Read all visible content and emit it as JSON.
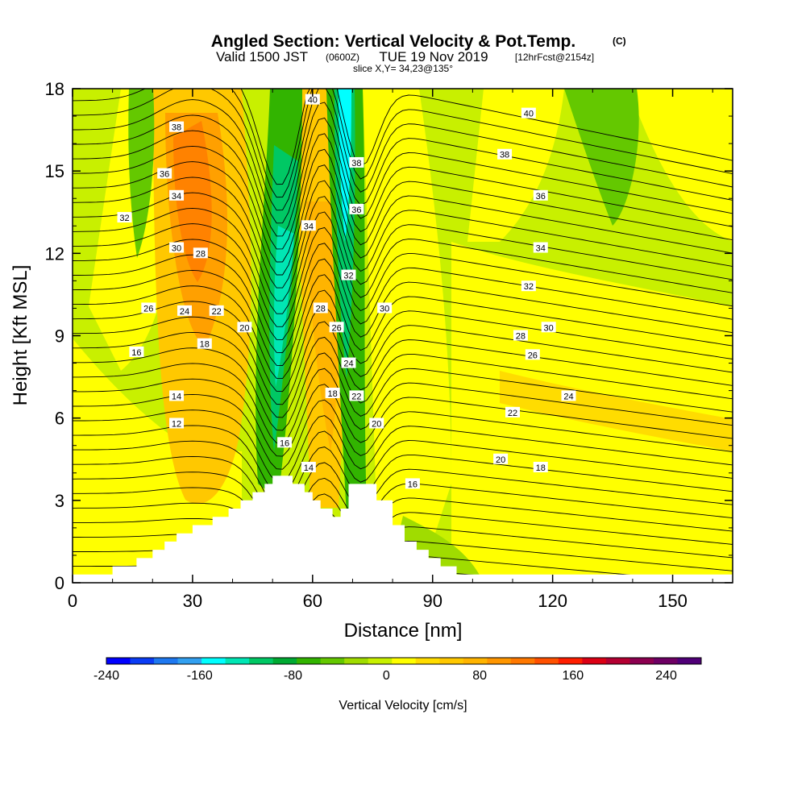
{
  "title": {
    "main": "Angled Section: Vertical Velocity & Pot.Temp.",
    "main_suffix": "(C)",
    "valid_prefix": "Valid 1500 JST",
    "valid_zulu": "(0600Z)",
    "valid_date": "TUE 19 Nov 2019",
    "forecast": "[12hrFcst@2154z]",
    "slice": "slice X,Y= 34,23@135°"
  },
  "chart_data": {
    "type": "heatmap",
    "xlabel": "Distance [nm]",
    "ylabel": "Height [Kft MSL]",
    "xlim": [
      0,
      165
    ],
    "ylim": [
      0,
      18
    ],
    "x_ticks": [
      0,
      30,
      60,
      90,
      120,
      150
    ],
    "y_ticks": [
      0,
      3,
      6,
      9,
      12,
      15,
      18
    ],
    "colorbar": {
      "label": "Vertical Velocity [cm/s]",
      "min": -240,
      "max": 270,
      "ticks": [
        -240,
        -160,
        -80,
        0,
        80,
        160,
        240
      ],
      "colors": [
        "#0000ff",
        "#0a3cf5",
        "#1e78f0",
        "#32a0f0",
        "#00ffff",
        "#00e6b4",
        "#00c864",
        "#00aa32",
        "#32b400",
        "#64c800",
        "#a0dc00",
        "#c8f000",
        "#ffff00",
        "#ffdc00",
        "#ffc800",
        "#ffb400",
        "#ff9600",
        "#ff7800",
        "#ff5000",
        "#ff1e00",
        "#dc0014",
        "#b40032",
        "#8c0050",
        "#6e0064",
        "#500078"
      ]
    },
    "terrain_profile": [
      [
        0,
        0.3
      ],
      [
        10,
        0.3
      ],
      [
        10,
        0.6
      ],
      [
        16,
        0.6
      ],
      [
        16,
        0.9
      ],
      [
        20,
        0.9
      ],
      [
        20,
        1.2
      ],
      [
        23,
        1.2
      ],
      [
        23,
        1.5
      ],
      [
        26,
        1.5
      ],
      [
        26,
        1.8
      ],
      [
        30,
        1.8
      ],
      [
        30,
        2.1
      ],
      [
        35,
        2.1
      ],
      [
        35,
        2.4
      ],
      [
        39,
        2.4
      ],
      [
        39,
        2.7
      ],
      [
        42,
        2.7
      ],
      [
        42,
        3.0
      ],
      [
        45,
        3.0
      ],
      [
        45,
        3.3
      ],
      [
        48,
        3.3
      ],
      [
        48,
        3.6
      ],
      [
        50,
        3.6
      ],
      [
        50,
        3.9
      ],
      [
        55,
        3.9
      ],
      [
        55,
        3.6
      ],
      [
        58,
        3.6
      ],
      [
        58,
        3.3
      ],
      [
        60,
        3.3
      ],
      [
        60,
        3.0
      ],
      [
        62,
        3.0
      ],
      [
        62,
        2.7
      ],
      [
        65,
        2.7
      ],
      [
        65,
        2.4
      ],
      [
        67,
        2.4
      ],
      [
        67,
        2.7
      ],
      [
        69,
        2.7
      ],
      [
        69,
        3.6
      ],
      [
        76,
        3.6
      ],
      [
        76,
        3.0
      ],
      [
        80,
        3.0
      ],
      [
        80,
        2.1
      ],
      [
        83,
        2.1
      ],
      [
        83,
        1.5
      ],
      [
        86,
        1.5
      ],
      [
        86,
        1.2
      ],
      [
        89,
        1.2
      ],
      [
        89,
        0.9
      ],
      [
        92,
        0.9
      ],
      [
        92,
        0.6
      ],
      [
        96,
        0.6
      ],
      [
        96,
        0.3
      ],
      [
        165,
        0.3
      ]
    ],
    "contour_labels": [
      {
        "x": 60,
        "y": 17.6,
        "text": "40"
      },
      {
        "x": 114,
        "y": 17.1,
        "text": "40"
      },
      {
        "x": 26,
        "y": 16.6,
        "text": "38"
      },
      {
        "x": 71,
        "y": 15.3,
        "text": "38"
      },
      {
        "x": 108,
        "y": 15.6,
        "text": "38"
      },
      {
        "x": 23,
        "y": 14.9,
        "text": "36"
      },
      {
        "x": 71,
        "y": 13.6,
        "text": "36"
      },
      {
        "x": 117,
        "y": 14.1,
        "text": "36"
      },
      {
        "x": 26,
        "y": 14.1,
        "text": "34"
      },
      {
        "x": 59,
        "y": 13.0,
        "text": "34"
      },
      {
        "x": 117,
        "y": 12.2,
        "text": "34"
      },
      {
        "x": 13,
        "y": 13.3,
        "text": "32"
      },
      {
        "x": 69,
        "y": 11.2,
        "text": "32"
      },
      {
        "x": 114,
        "y": 10.8,
        "text": "32"
      },
      {
        "x": 26,
        "y": 12.2,
        "text": "30"
      },
      {
        "x": 78,
        "y": 10.0,
        "text": "30"
      },
      {
        "x": 119,
        "y": 9.3,
        "text": "30"
      },
      {
        "x": 32,
        "y": 12.0,
        "text": "28"
      },
      {
        "x": 62,
        "y": 10.0,
        "text": "28"
      },
      {
        "x": 112,
        "y": 9.0,
        "text": "28"
      },
      {
        "x": 19,
        "y": 10.0,
        "text": "26"
      },
      {
        "x": 66,
        "y": 9.3,
        "text": "26"
      },
      {
        "x": 115,
        "y": 8.3,
        "text": "26"
      },
      {
        "x": 28,
        "y": 9.9,
        "text": "24"
      },
      {
        "x": 69,
        "y": 8.0,
        "text": "24"
      },
      {
        "x": 124,
        "y": 6.8,
        "text": "24"
      },
      {
        "x": 36,
        "y": 9.9,
        "text": "22"
      },
      {
        "x": 71,
        "y": 6.8,
        "text": "22"
      },
      {
        "x": 110,
        "y": 6.2,
        "text": "22"
      },
      {
        "x": 43,
        "y": 9.3,
        "text": "20"
      },
      {
        "x": 76,
        "y": 5.8,
        "text": "20"
      },
      {
        "x": 107,
        "y": 4.5,
        "text": "20"
      },
      {
        "x": 33,
        "y": 8.7,
        "text": "18"
      },
      {
        "x": 65,
        "y": 6.9,
        "text": "18"
      },
      {
        "x": 117,
        "y": 4.2,
        "text": "18"
      },
      {
        "x": 16,
        "y": 8.4,
        "text": "16"
      },
      {
        "x": 53,
        "y": 5.1,
        "text": "16"
      },
      {
        "x": 85,
        "y": 3.6,
        "text": "16"
      },
      {
        "x": 26,
        "y": 6.8,
        "text": "14"
      },
      {
        "x": 59,
        "y": 4.2,
        "text": "14"
      },
      {
        "x": 26,
        "y": 5.8,
        "text": "12"
      }
    ]
  }
}
